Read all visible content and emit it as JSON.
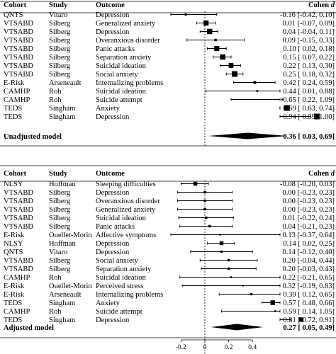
{
  "chart_data": {
    "type": "forest",
    "x_axis": {
      "ticks": [
        -0.2,
        0,
        0.2,
        0.4
      ],
      "tick_labels": [
        "-0.2",
        "0",
        "0.2",
        "0.4"
      ],
      "reference_line": 0
    },
    "panels": [
      {
        "headers": {
          "cohort": "Cohort",
          "study": "Study",
          "outcome": "Outcome",
          "effect": "Cohen d"
        },
        "rows": [
          {
            "cohort": "QNTS",
            "study": "Vitaro",
            "outcome": "Depression",
            "d": -0.16,
            "lo": -0.42,
            "hi": 0.1,
            "label": "-0.16 [-0.42, 0.10]"
          },
          {
            "cohort": "VTSABD",
            "study": "Silberg",
            "outcome": "Generalized anxiety",
            "d": 0.01,
            "lo": -0.07,
            "hi": 0.09,
            "label": "0.01 [-0.07, 0.09]"
          },
          {
            "cohort": "VTSABD",
            "study": "Silberg",
            "outcome": "Depression",
            "d": 0.04,
            "lo": -0.04,
            "hi": 0.11,
            "label": "0.04 [-0.04, 0.11]"
          },
          {
            "cohort": "VTSABD",
            "study": "Silberg",
            "outcome": "Overanxious disorder",
            "d": 0.09,
            "lo": -0.15,
            "hi": 0.33,
            "label": "0.09 [-0.15, 0.33]"
          },
          {
            "cohort": "VTSABD",
            "study": "Silberg",
            "outcome": "Panic attacks",
            "d": 0.1,
            "lo": 0.02,
            "hi": 0.18,
            "label": "0.10 [ 0.02, 0.18]"
          },
          {
            "cohort": "VTSABD",
            "study": "Silberg",
            "outcome": "Separation anxiety",
            "d": 0.15,
            "lo": 0.07,
            "hi": 0.22,
            "label": "0.15 [ 0.07, 0.22]"
          },
          {
            "cohort": "VTSABD",
            "study": "Silberg",
            "outcome": "Suicidal ideation",
            "d": 0.22,
            "lo": 0.13,
            "hi": 0.3,
            "label": "0.22 [ 0.13, 0.30]"
          },
          {
            "cohort": "VTSABD",
            "study": "Silberg",
            "outcome": "Social anxiety",
            "d": 0.25,
            "lo": 0.18,
            "hi": 0.32,
            "label": "0.25 [ 0.18, 0.32]"
          },
          {
            "cohort": "E-Risk",
            "study": "Arseneault",
            "outcome": "Internalizing problems",
            "d": 0.42,
            "lo": 0.24,
            "hi": 0.59,
            "label": "0.42 [ 0.24, 0.59]"
          },
          {
            "cohort": "CAMHP",
            "study": "Roh",
            "outcome": "Suicidal ideation",
            "d": 0.44,
            "lo": 0.01,
            "hi": 0.88,
            "label": "0.44 [ 0.01, 0.88]"
          },
          {
            "cohort": "CAMHP",
            "study": "Roh",
            "outcome": "Suicide attempt",
            "d": 0.65,
            "lo": 0.22,
            "hi": 1.09,
            "label": "0.65 [ 0.22, 1.09]"
          },
          {
            "cohort": "TEDS",
            "study": "Singham",
            "outcome": "Anxiety",
            "d": 0.69,
            "lo": 0.63,
            "hi": 0.74,
            "label": "0.69 [ 0.63, 0.74]"
          },
          {
            "cohort": "TEDS",
            "study": "Singham",
            "outcome": "Depression",
            "d": 0.94,
            "lo": 0.89,
            "hi": 1.0,
            "label": "0.94 [ 0.89, 1.00]"
          }
        ],
        "summary": {
          "label": "Unadjusted model",
          "d": 0.36,
          "lo": 0.03,
          "hi": 0.69,
          "text": "0.36 [ 0.03, 0.69]"
        }
      },
      {
        "headers": {
          "cohort": "Cohort",
          "study": "Study",
          "outcome": "Outcome",
          "effect": "Cohen d"
        },
        "rows": [
          {
            "cohort": "NLSY",
            "study": "Hoffman",
            "outcome": "Sleeping difficulties",
            "d": -0.08,
            "lo": -0.2,
            "hi": 0.03,
            "label": "-0.08 [-0.20, 0.03]"
          },
          {
            "cohort": "VTSABD",
            "study": "Silberg",
            "outcome": "Depression",
            "d": 0.0,
            "lo": -0.23,
            "hi": 0.23,
            "label": "0.00 [-0.23, 0.23]"
          },
          {
            "cohort": "VTSABD",
            "study": "Silberg",
            "outcome": "Overanxious disorder",
            "d": 0.0,
            "lo": -0.23,
            "hi": 0.23,
            "label": "0.00 [-0.23, 0.23]"
          },
          {
            "cohort": "VTSABD",
            "study": "Silberg",
            "outcome": "Generalized anxiety",
            "d": 0.0,
            "lo": -0.23,
            "hi": 0.23,
            "label": "0.00 [-0.23, 0.23]"
          },
          {
            "cohort": "VTSABD",
            "study": "Silberg",
            "outcome": "Suicidal ideation",
            "d": 0.01,
            "lo": -0.22,
            "hi": 0.24,
            "label": "0.01 [-0.22, 0.24]"
          },
          {
            "cohort": "VTSABD",
            "study": "Silberg",
            "outcome": "Panic attacks",
            "d": 0.04,
            "lo": -0.21,
            "hi": 0.23,
            "label": "0.04 [-0.21, 0.23]"
          },
          {
            "cohort": "E-Risk",
            "study": "Ouellet-Morin",
            "outcome": "Affective symptoms",
            "d": 0.13,
            "lo": -0.37,
            "hi": 0.64,
            "label": "0.13 [-0.37, 0.64]"
          },
          {
            "cohort": "NLSY",
            "study": "Hoffman",
            "outcome": "Depression",
            "d": 0.14,
            "lo": 0.02,
            "hi": 0.25,
            "label": "0.14 [ 0.02, 0.25]"
          },
          {
            "cohort": "QNTS",
            "study": "Vitaro",
            "outcome": "Depression",
            "d": 0.14,
            "lo": -0.12,
            "hi": 0.4,
            "label": "0.14 [-0.12, 0.40]"
          },
          {
            "cohort": "VTSABD",
            "study": "Silberg",
            "outcome": "Social anxiety",
            "d": 0.2,
            "lo": -0.04,
            "hi": 0.44,
            "label": "0.20 [-0.04, 0.44]"
          },
          {
            "cohort": "VTSABD",
            "study": "Silberg",
            "outcome": "Separation anxiety",
            "d": 0.2,
            "lo": -0.03,
            "hi": 0.43,
            "label": "0.20 [-0.03, 0.43]"
          },
          {
            "cohort": "CAMHP",
            "study": "Roh",
            "outcome": "Suicidal ideation",
            "d": 0.22,
            "lo": -0.21,
            "hi": 0.65,
            "label": "0.22 [-0.21, 0.65]"
          },
          {
            "cohort": "E-Risk",
            "study": "Ouellet-Morin",
            "outcome": "Perceived stress",
            "d": 0.32,
            "lo": -0.19,
            "hi": 0.83,
            "label": "0.32 [-0.19, 0.83]"
          },
          {
            "cohort": "E-Risk",
            "study": "Arseneault",
            "outcome": "Internalizing problems",
            "d": 0.39,
            "lo": 0.12,
            "hi": 0.65,
            "label": "0.39 [ 0.12, 0.65]"
          },
          {
            "cohort": "TEDS",
            "study": "Singham",
            "outcome": "Anxiety",
            "d": 0.57,
            "lo": 0.48,
            "hi": 0.66,
            "label": "0.57 [ 0.48, 0.66]"
          },
          {
            "cohort": "CAMHP",
            "study": "Roh",
            "outcome": "Suicide attempt",
            "d": 0.59,
            "lo": 0.14,
            "hi": 1.05,
            "label": "0.59 [ 0.14, 1.05]"
          },
          {
            "cohort": "TEDS",
            "study": "Singham",
            "outcome": "Depression",
            "d": 0.81,
            "lo": 0.72,
            "hi": 0.91,
            "label": "0.81 [ 0.72, 0.91]"
          }
        ],
        "summary": {
          "label": "Adjusted model",
          "d": 0.27,
          "lo": 0.05,
          "hi": 0.49,
          "text": "0.27 [ 0.05, 0.49]"
        }
      }
    ]
  }
}
